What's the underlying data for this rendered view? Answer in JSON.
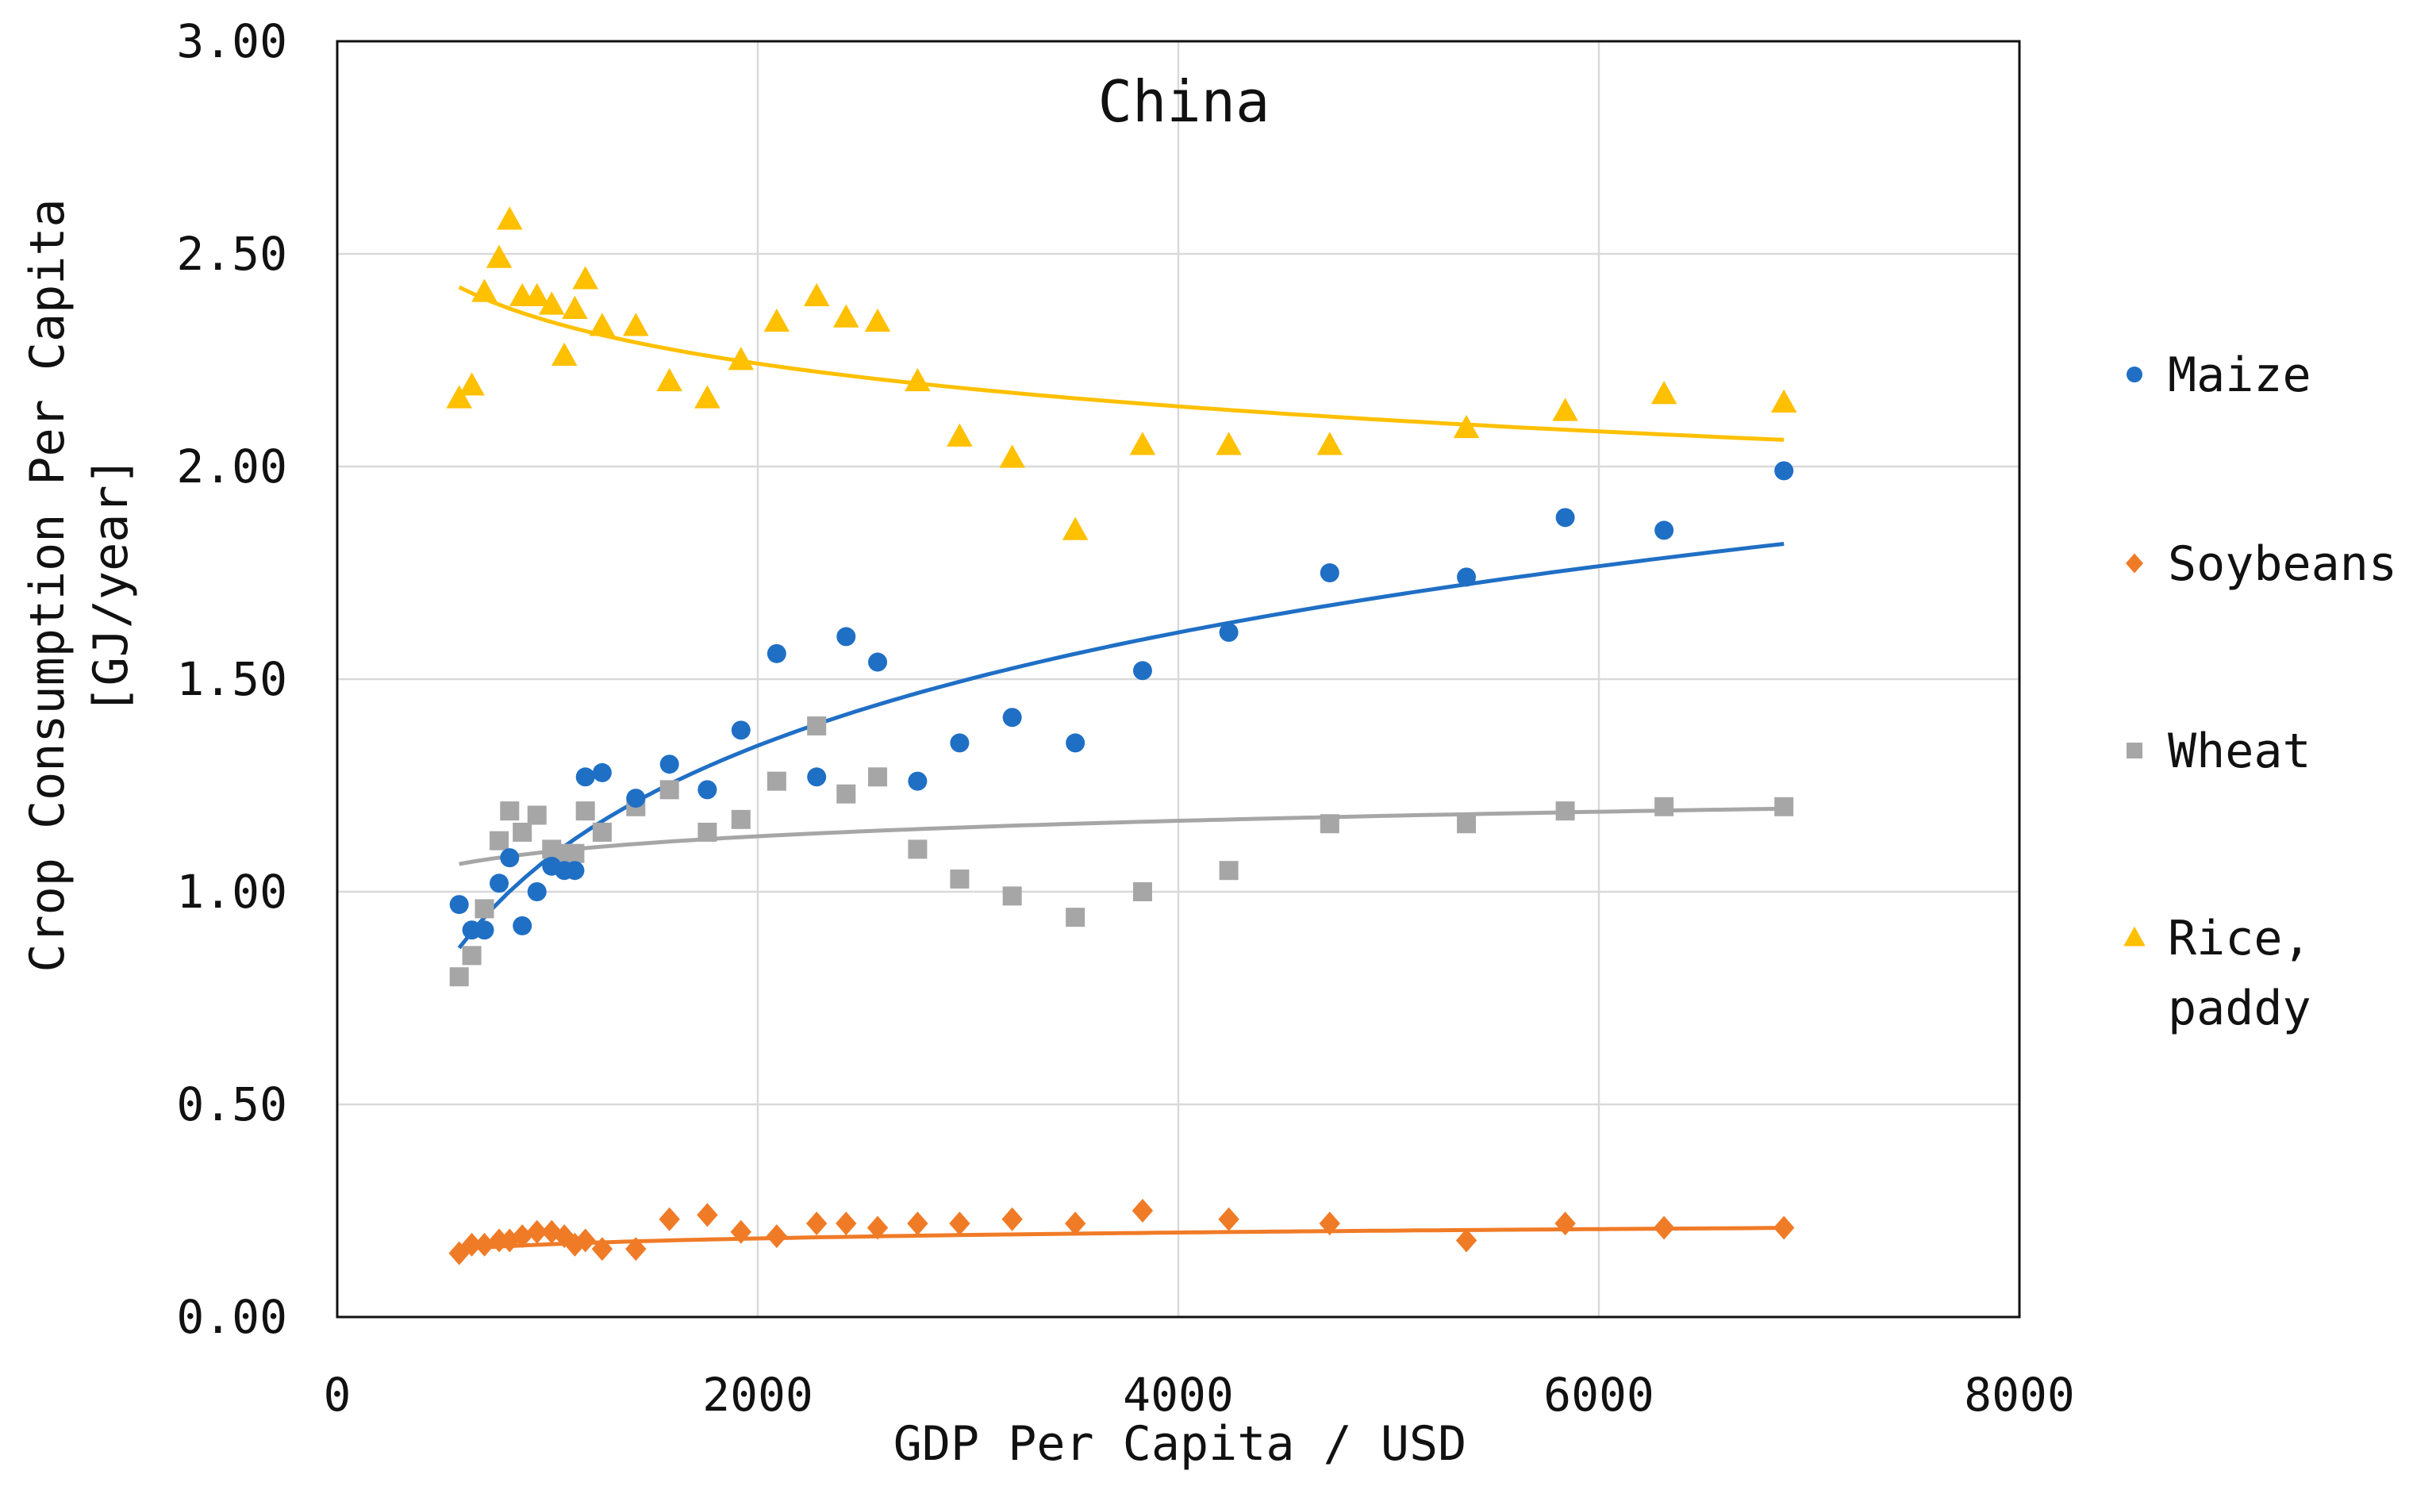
{
  "chart_data": {
    "type": "scatter",
    "title": "China",
    "xlabel": "GDP Per Capita / USD",
    "ylabel_line1": "Crop Consumption Per Capita",
    "ylabel_line2": "[GJ/year]",
    "xlim": [
      0,
      8000
    ],
    "ylim": [
      0,
      3
    ],
    "x_ticks": [
      0,
      2000,
      4000,
      6000,
      8000
    ],
    "x_tick_labels": [
      "0",
      "2000",
      "4000",
      "6000",
      "8000"
    ],
    "y_ticks": [
      0,
      0.5,
      1,
      1.5,
      2,
      2.5,
      3
    ],
    "y_tick_labels": [
      "0.00",
      "0.50",
      "1.00",
      "1.50",
      "2.00",
      "2.50",
      "3.00"
    ],
    "grid": true,
    "legend_position": "right",
    "series": [
      {
        "name": "Maize",
        "legend_lines": [
          "Maize"
        ],
        "marker": "circle",
        "color": "#1F6FC5",
        "x": [
          580,
          640,
          700,
          770,
          820,
          880,
          950,
          1020,
          1080,
          1130,
          1180,
          1260,
          1420,
          1580,
          1760,
          1920,
          2090,
          2280,
          2420,
          2570,
          2760,
          2960,
          3210,
          3510,
          3830,
          4240,
          4720,
          5370,
          5840,
          6310,
          6880
        ],
        "y": [
          0.97,
          0.91,
          0.91,
          1.02,
          1.08,
          0.92,
          1.0,
          1.06,
          1.05,
          1.05,
          1.27,
          1.28,
          1.22,
          1.3,
          1.24,
          1.38,
          1.56,
          1.27,
          1.6,
          1.54,
          1.26,
          1.35,
          1.41,
          1.35,
          1.52,
          1.61,
          1.75,
          1.74,
          1.88,
          1.85,
          1.99
        ],
        "trend": {
          "model": "logarithmic",
          "from": 580,
          "to": 6880,
          "a": 0.8679,
          "b": 0.3842
        }
      },
      {
        "name": "Soybeans",
        "legend_lines": [
          "Soybeans"
        ],
        "marker": "diamond",
        "color": "#F07B27",
        "x": [
          580,
          640,
          700,
          770,
          820,
          880,
          950,
          1020,
          1080,
          1130,
          1180,
          1260,
          1420,
          1580,
          1760,
          1920,
          2090,
          2280,
          2420,
          2570,
          2760,
          2960,
          3210,
          3510,
          3830,
          4240,
          4720,
          5370,
          5840,
          6310,
          6880
        ],
        "y": [
          0.15,
          0.17,
          0.17,
          0.18,
          0.18,
          0.19,
          0.2,
          0.2,
          0.19,
          0.17,
          0.18,
          0.16,
          0.16,
          0.23,
          0.24,
          0.2,
          0.19,
          0.22,
          0.22,
          0.21,
          0.22,
          0.22,
          0.23,
          0.22,
          0.25,
          0.23,
          0.22,
          0.18,
          0.22,
          0.21,
          0.21
        ],
        "trend": {
          "model": "logarithmic",
          "from": 580,
          "to": 6880,
          "a": 0.16,
          "b": 0.02
        }
      },
      {
        "name": "Wheat",
        "legend_lines": [
          "Wheat"
        ],
        "marker": "square",
        "color": "#A6A6A6",
        "x": [
          580,
          640,
          700,
          770,
          820,
          880,
          950,
          1020,
          1080,
          1130,
          1180,
          1260,
          1420,
          1580,
          1760,
          1920,
          2090,
          2280,
          2420,
          2570,
          2760,
          2960,
          3210,
          3510,
          3830,
          4240,
          4720,
          5370,
          5840,
          6310,
          6880
        ],
        "y": [
          0.8,
          0.85,
          0.96,
          1.12,
          1.19,
          1.14,
          1.18,
          1.1,
          1.09,
          1.09,
          1.19,
          1.14,
          1.2,
          1.24,
          1.14,
          1.17,
          1.26,
          1.39,
          1.23,
          1.27,
          1.1,
          1.03,
          0.99,
          0.94,
          1.0,
          1.05,
          1.16,
          1.16,
          1.19,
          1.2,
          1.2
        ],
        "trend": {
          "model": "logarithmic",
          "from": 580,
          "to": 6880,
          "a": 1.0653,
          "b": 0.0526
        }
      },
      {
        "name": "Rice, paddy",
        "legend_lines": [
          "Rice,",
          "paddy"
        ],
        "marker": "triangle",
        "color": "#FFC000",
        "x": [
          580,
          640,
          700,
          770,
          820,
          880,
          950,
          1020,
          1080,
          1130,
          1180,
          1260,
          1420,
          1580,
          1760,
          1920,
          2090,
          2280,
          2420,
          2570,
          2760,
          2960,
          3210,
          3510,
          3830,
          4240,
          4720,
          5370,
          5840,
          6310,
          6880
        ],
        "y": [
          2.16,
          2.19,
          2.41,
          2.49,
          2.58,
          2.4,
          2.4,
          2.38,
          2.26,
          2.37,
          2.44,
          2.33,
          2.33,
          2.2,
          2.16,
          2.25,
          2.34,
          2.4,
          2.35,
          2.34,
          2.2,
          2.07,
          2.02,
          1.85,
          2.05,
          2.05,
          2.05,
          2.09,
          2.13,
          2.17,
          2.15
        ],
        "trend": {
          "model": "logarithmic",
          "from": 580,
          "to": 6880,
          "a": 2.4216,
          "b": -0.1451
        }
      }
    ]
  }
}
